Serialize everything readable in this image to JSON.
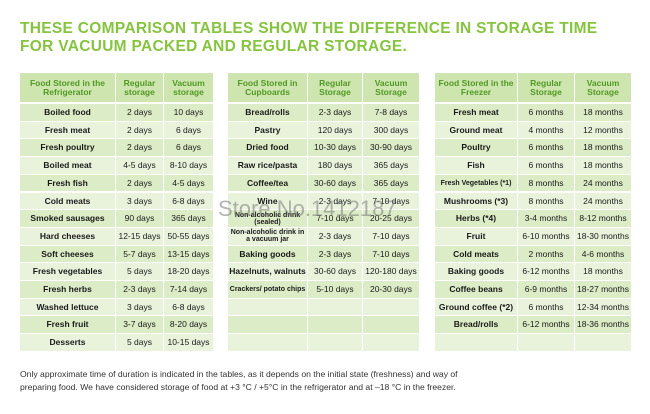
{
  "title": [
    "THESE COMPARISON TABLES SHOW THE DIFFERENCE IN STORAGE TIME",
    "FOR VACUUM PACKED AND REGULAR STORAGE."
  ],
  "tables": [
    {
      "columns": [
        "Food Stored in the Refrigerator",
        "Regular storage",
        "Vacuum storage"
      ],
      "rows": [
        [
          "Boiled food",
          "2 days",
          "10 days"
        ],
        [
          "Fresh meat",
          "2 days",
          "6 days"
        ],
        [
          "Fresh poultry",
          "2 days",
          "6 days"
        ],
        [
          "Boiled meat",
          "4-5 days",
          "8-10 days"
        ],
        [
          "Fresh fish",
          "2 days",
          "4-5 days"
        ],
        [
          "Cold meats",
          "3 days",
          "6-8 days"
        ],
        [
          "Smoked sausages",
          "90 days",
          "365 days"
        ],
        [
          "Hard cheeses",
          "12-15 days",
          "50-55 days"
        ],
        [
          "Soft cheeses",
          "5-7 days",
          "13-15 days"
        ],
        [
          "Fresh vegetables",
          "5 days",
          "18-20 days"
        ],
        [
          "Fresh herbs",
          "2-3 days",
          "7-14 days"
        ],
        [
          "Washed lettuce",
          "3 days",
          "6-8 days"
        ],
        [
          "Fresh fruit",
          "3-7 days",
          "8-20 days"
        ],
        [
          "Desserts",
          "5 days",
          "10-15 days"
        ]
      ]
    },
    {
      "columns": [
        "Food Stored in Cupboards",
        "Regular Storage",
        "Vacuum Storage"
      ],
      "rows": [
        [
          "Bread/rolls",
          "2-3 days",
          "7-8 days"
        ],
        [
          "Pastry",
          "120 days",
          "300 days"
        ],
        [
          "Dried food",
          "10-30 days",
          "30-90 days"
        ],
        [
          "Raw rice/pasta",
          "180 days",
          "365 days"
        ],
        [
          "Coffee/tea",
          "30-60 days",
          "365 days"
        ],
        [
          "Wine",
          "2-3 days",
          "7-10 days"
        ],
        [
          "Non-alcoholic drink (sealed)",
          "7-10 days",
          "20-25 days"
        ],
        [
          "Non-alcoholic drink in a vacuum jar",
          "2-3 days",
          "7-10 days"
        ],
        [
          "Baking goods",
          "2-3 days",
          "7-10 days"
        ],
        [
          "Hazelnuts, walnuts",
          "30-60 days",
          "120-180 days"
        ],
        [
          "Crackers/ potato chips",
          "5-10 days",
          "20-30 days"
        ]
      ]
    },
    {
      "columns": [
        "Food Stored in the Freezer",
        "Regular Storage",
        "Vacuum Storage"
      ],
      "rows": [
        [
          "Fresh meat",
          "6 months",
          "18 months"
        ],
        [
          "Ground meat",
          "4 months",
          "12 months"
        ],
        [
          "Poultry",
          "6 months",
          "18 months"
        ],
        [
          "Fish",
          "6 months",
          "18 months"
        ],
        [
          "Fresh Vegetables (*1)",
          "8 months",
          "24 months"
        ],
        [
          "Mushrooms (*3)",
          "8 months",
          "24 months"
        ],
        [
          "Herbs (*4)",
          "3-4 months",
          "8-12 months"
        ],
        [
          "Fruit",
          "6-10 months",
          "18-30 months"
        ],
        [
          "Cold meats",
          "2 months",
          "4-6 months"
        ],
        [
          "Baking goods",
          "6-12 months",
          "18 months"
        ],
        [
          "Coffee beans",
          "6-9 months",
          "18-27 months"
        ],
        [
          "Ground coffee (*2)",
          "6 months",
          "12-34 months"
        ],
        [
          "Bread/rolls",
          "6-12 months",
          "18-36 months"
        ]
      ]
    }
  ],
  "footnote": [
    "Only approximate time of duration is indicated in the tables, as it depends on the initial state (freshness) and way of",
    "preparing food. We have considered storage of food at +3 °C / +5°C in the refrigerator and at –18 °C in the freezer."
  ],
  "watermark": "Store No.1412187"
}
